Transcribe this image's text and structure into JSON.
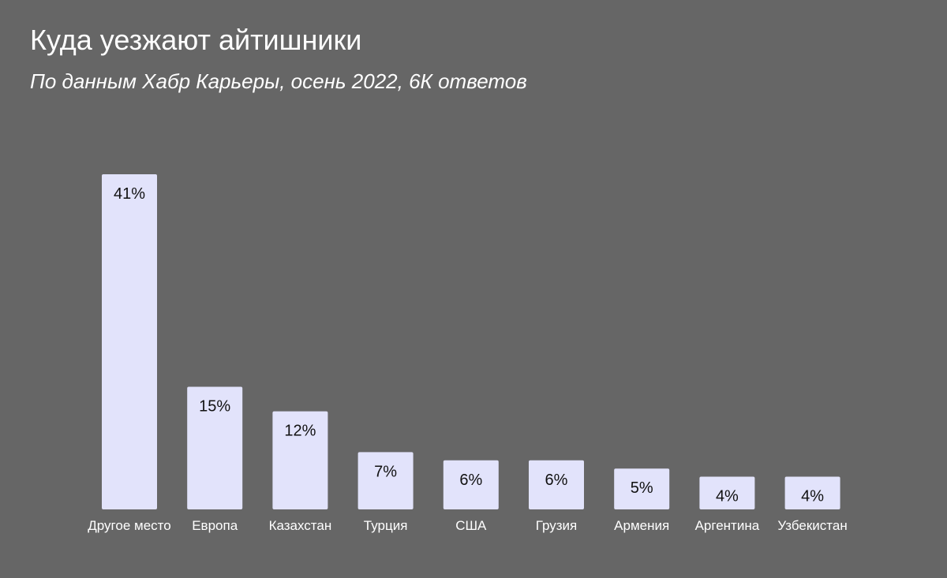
{
  "header": {
    "title": "Куда уезжают айтишники",
    "subtitle": "По данным Хабр Карьеры, осень 2022, 6К ответов"
  },
  "colors": {
    "background": "#666666",
    "bar": "#e2e3fb",
    "text": "#ffffff",
    "value_text": "#111111"
  },
  "chart_data": {
    "type": "bar",
    "title": "Куда уезжают айтишники",
    "subtitle": "По данным Хабр Карьеры, осень 2022, 6К ответов",
    "categories": [
      "Другое место",
      "Европа",
      "Казахстан",
      "Турция",
      "США",
      "Грузия",
      "Армения",
      "Аргентина",
      "Узбекистан"
    ],
    "values": [
      41,
      15,
      12,
      7,
      6,
      6,
      5,
      4,
      4
    ],
    "value_labels": [
      "41%",
      "15%",
      "12%",
      "7%",
      "6%",
      "6%",
      "5%",
      "4%",
      "4%"
    ],
    "unit": "%",
    "xlabel": "",
    "ylabel": "",
    "ylim": [
      0,
      41
    ],
    "grid": false,
    "legend": "none",
    "data_labels": "inside-top"
  }
}
